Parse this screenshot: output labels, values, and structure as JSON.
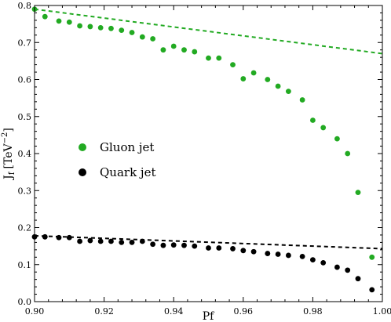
{
  "chart_data": {
    "type": "scatter",
    "xlabel": "Pf",
    "ylabel_main": "J",
    "ylabel_sub": "f",
    "ylabel_unit_base": "[TeV",
    "ylabel_unit_exp": "−2",
    "ylabel_unit_close": "]",
    "xlim": [
      0.9,
      1.0
    ],
    "ylim": [
      0.0,
      0.8
    ],
    "x_ticks": [
      0.9,
      0.92,
      0.94,
      0.96,
      0.98,
      1.0
    ],
    "x_tick_labels": [
      "0.90",
      "0.92",
      "0.94",
      "0.96",
      "0.98",
      "1.00"
    ],
    "y_ticks": [
      0.0,
      0.1,
      0.2,
      0.3,
      0.4,
      0.5,
      0.6,
      0.7,
      0.8
    ],
    "y_tick_labels": [
      "0.0",
      "0.1",
      "0.2",
      "0.3",
      "0.4",
      "0.5",
      "0.6",
      "0.7",
      "0.8"
    ],
    "grid": false,
    "legend_position": "middle-left",
    "series": [
      {
        "name": "Gluon jet",
        "color": "#22aa22",
        "points": [
          [
            0.9,
            0.79
          ],
          [
            0.903,
            0.77
          ],
          [
            0.907,
            0.758
          ],
          [
            0.91,
            0.755
          ],
          [
            0.913,
            0.745
          ],
          [
            0.916,
            0.743
          ],
          [
            0.919,
            0.74
          ],
          [
            0.922,
            0.738
          ],
          [
            0.925,
            0.733
          ],
          [
            0.928,
            0.727
          ],
          [
            0.931,
            0.715
          ],
          [
            0.934,
            0.71
          ],
          [
            0.937,
            0.68
          ],
          [
            0.94,
            0.69
          ],
          [
            0.943,
            0.68
          ],
          [
            0.946,
            0.675
          ],
          [
            0.95,
            0.658
          ],
          [
            0.953,
            0.658
          ],
          [
            0.957,
            0.64
          ],
          [
            0.96,
            0.602
          ],
          [
            0.963,
            0.618
          ],
          [
            0.967,
            0.6
          ],
          [
            0.97,
            0.582
          ],
          [
            0.973,
            0.568
          ],
          [
            0.977,
            0.545
          ],
          [
            0.98,
            0.49
          ],
          [
            0.983,
            0.47
          ],
          [
            0.987,
            0.44
          ],
          [
            0.99,
            0.4
          ],
          [
            0.993,
            0.295
          ],
          [
            0.997,
            0.12
          ]
        ],
        "fit_line": [
          [
            0.9,
            0.79
          ],
          [
            1.0,
            0.67
          ]
        ]
      },
      {
        "name": "Quark jet",
        "color": "#000000",
        "points": [
          [
            0.9,
            0.175
          ],
          [
            0.903,
            0.175
          ],
          [
            0.907,
            0.173
          ],
          [
            0.91,
            0.173
          ],
          [
            0.913,
            0.163
          ],
          [
            0.916,
            0.165
          ],
          [
            0.919,
            0.163
          ],
          [
            0.922,
            0.163
          ],
          [
            0.925,
            0.16
          ],
          [
            0.928,
            0.16
          ],
          [
            0.931,
            0.163
          ],
          [
            0.934,
            0.155
          ],
          [
            0.937,
            0.152
          ],
          [
            0.94,
            0.153
          ],
          [
            0.943,
            0.152
          ],
          [
            0.946,
            0.15
          ],
          [
            0.95,
            0.145
          ],
          [
            0.953,
            0.145
          ],
          [
            0.957,
            0.143
          ],
          [
            0.96,
            0.138
          ],
          [
            0.963,
            0.135
          ],
          [
            0.967,
            0.13
          ],
          [
            0.97,
            0.128
          ],
          [
            0.973,
            0.125
          ],
          [
            0.977,
            0.122
          ],
          [
            0.98,
            0.113
          ],
          [
            0.983,
            0.105
          ],
          [
            0.987,
            0.093
          ],
          [
            0.99,
            0.085
          ],
          [
            0.993,
            0.062
          ],
          [
            0.997,
            0.032
          ]
        ],
        "fit_line": [
          [
            0.9,
            0.178
          ],
          [
            1.0,
            0.143
          ]
        ]
      }
    ]
  }
}
